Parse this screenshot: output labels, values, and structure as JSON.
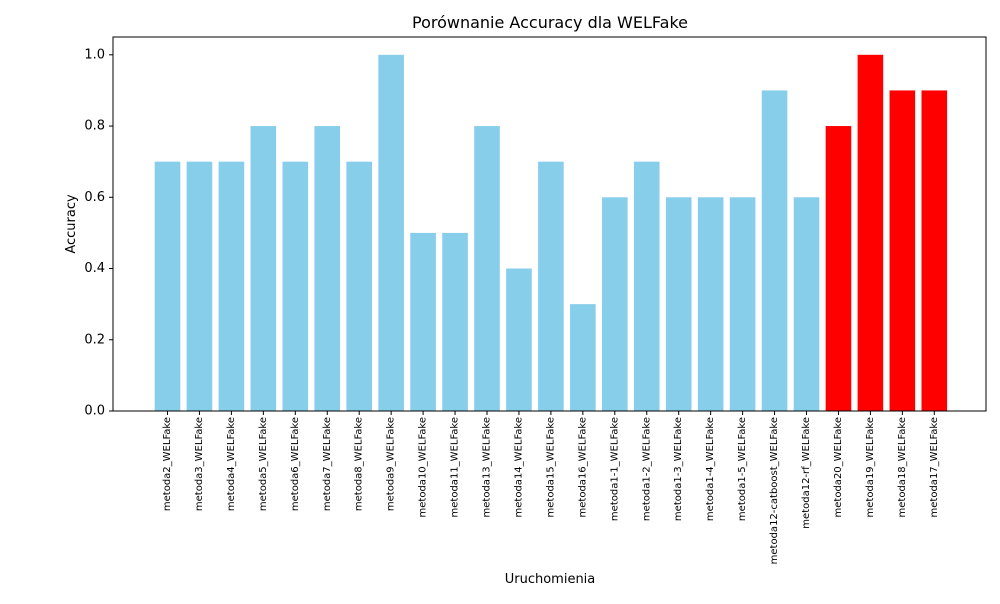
{
  "chart_data": {
    "type": "bar",
    "title": "Porównanie Accuracy dla WELFake",
    "xlabel": "Uruchomienia",
    "ylabel": "Accuracy",
    "ylim": [
      0,
      1.05
    ],
    "yticks": [
      "0.0",
      "0.2",
      "0.4",
      "0.6",
      "0.8",
      "1.0"
    ],
    "categories": [
      "metoda2_WELFake",
      "metoda3_WELFake",
      "metoda4_WELFake",
      "metoda5_WELFake",
      "metoda6_WELFake",
      "metoda7_WELFake",
      "metoda8_WELFake",
      "metoda9_WELFake",
      "metoda10_WELFake",
      "metoda11_WELFake",
      "metoda13_WELFake",
      "metoda14_WELFake",
      "metoda15_WELFake",
      "metoda16_WELFake",
      "metoda1-1_WELFake",
      "metoda1-2_WELFake",
      "metoda1-3_WELFake",
      "metoda1-4_WELFake",
      "metoda1-5_WELFake",
      "metoda12-catboost_WELFake",
      "metoda12-rf_WELFake",
      "metoda20_WELFake",
      "metoda19_WELFake",
      "metoda18_WELFake",
      "metoda17_WELFake"
    ],
    "values": [
      0.7,
      0.7,
      0.7,
      0.8,
      0.7,
      0.8,
      0.7,
      1.0,
      0.5,
      0.5,
      0.8,
      0.4,
      0.7,
      0.3,
      0.6,
      0.7,
      0.6,
      0.6,
      0.6,
      0.9,
      0.6,
      0.8,
      1.0,
      0.9,
      0.9
    ],
    "bar_colors": [
      "#87ceeb",
      "#87ceeb",
      "#87ceeb",
      "#87ceeb",
      "#87ceeb",
      "#87ceeb",
      "#87ceeb",
      "#87ceeb",
      "#87ceeb",
      "#87ceeb",
      "#87ceeb",
      "#87ceeb",
      "#87ceeb",
      "#87ceeb",
      "#87ceeb",
      "#87ceeb",
      "#87ceeb",
      "#87ceeb",
      "#87ceeb",
      "#87ceeb",
      "#87ceeb",
      "#ff0000",
      "#ff0000",
      "#ff0000",
      "#ff0000"
    ],
    "grid": false,
    "legend": "none"
  }
}
